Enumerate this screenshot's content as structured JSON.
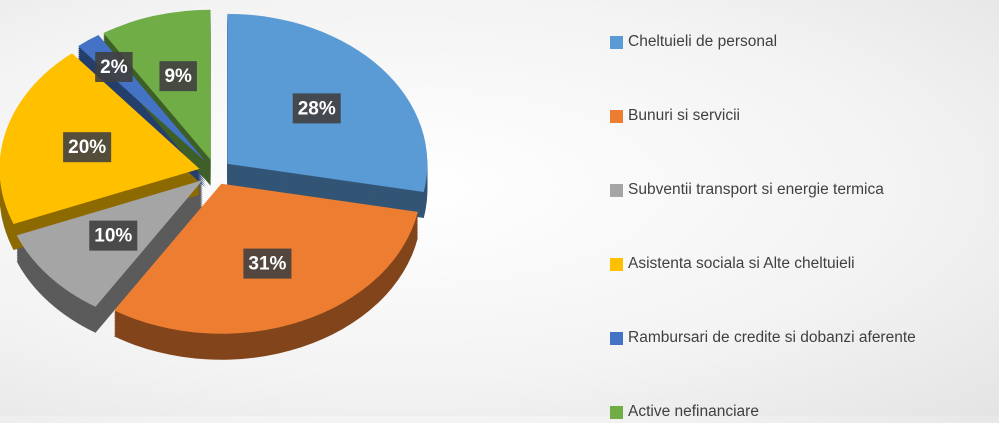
{
  "chart_data": {
    "type": "pie",
    "categories": [
      "Cheltuieli de personal",
      "Bunuri si servicii",
      "Subventii transport si energie termica",
      "Asistenta sociala si Alte cheltuieli",
      "Rambursari de credite si dobanzi aferente",
      "Active nefinanciare"
    ],
    "values": [
      28,
      31,
      10,
      20,
      2,
      9
    ],
    "value_labels": [
      "28%",
      "31%",
      "10%",
      "20%",
      "2%",
      "9%"
    ],
    "colors": [
      "#5b9bd5",
      "#ed7d31",
      "#a5a5a5",
      "#ffc000",
      "#4472c4",
      "#70ad47"
    ],
    "legend": "right"
  }
}
